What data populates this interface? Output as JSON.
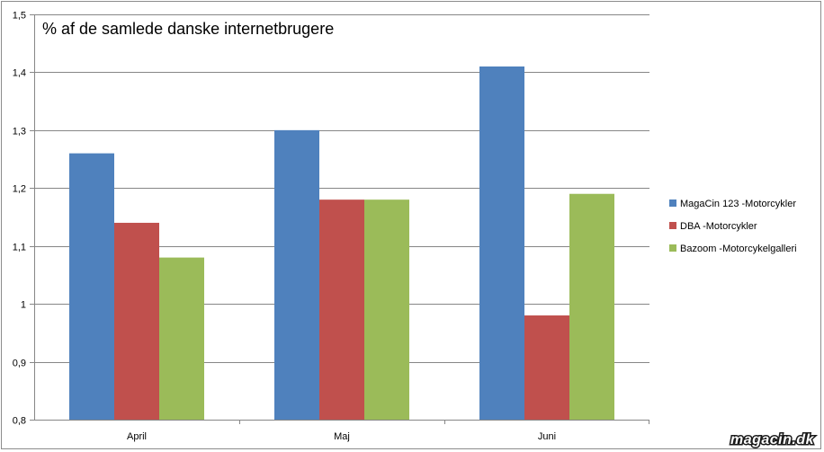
{
  "chart_data": {
    "type": "bar",
    "title": "% af de samlede danske internetbrugere",
    "categories": [
      "April",
      "Maj",
      "Juni"
    ],
    "series": [
      {
        "name": "MagaCin 123 -Motorcykler",
        "color": "#4f81bd",
        "values": [
          1.26,
          1.3,
          1.41
        ]
      },
      {
        "name": "DBA -Motorcykler",
        "color": "#c0504d",
        "values": [
          1.14,
          1.18,
          0.98
        ]
      },
      {
        "name": "Bazoom -Motorcykelgalleri",
        "color": "#9bbb59",
        "values": [
          1.08,
          1.18,
          1.19
        ]
      }
    ],
    "ylim": [
      0.8,
      1.5
    ],
    "yticks": [
      0.8,
      0.9,
      1.0,
      1.1,
      1.2,
      1.3,
      1.4,
      1.5
    ],
    "ytick_labels": [
      "0,8",
      "0,9",
      "1",
      "1,1",
      "1,2",
      "1,3",
      "1,4",
      "1,5"
    ],
    "grid": true,
    "legend": "right"
  },
  "watermark": "magacin.dk"
}
